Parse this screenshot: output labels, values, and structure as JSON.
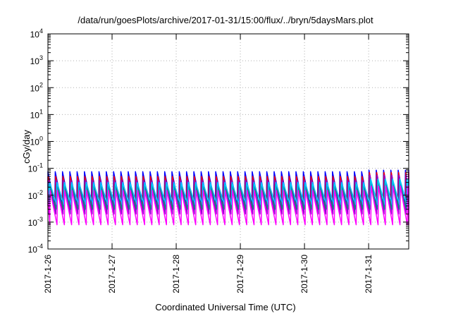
{
  "chart_data": {
    "type": "line",
    "title": "/data/run/goesPlots/archive/2017-01-31/15:00/flux/../bryn/5daysMars.plot",
    "xlabel": "Coordinated Universal Time (UTC)",
    "ylabel": "cGy/day",
    "yscale": "log",
    "ylim": [
      0.0001,
      10000
    ],
    "y_ticks": [
      {
        "value": 0.0001,
        "base": "10",
        "exp": "-4"
      },
      {
        "value": 0.001,
        "base": "10",
        "exp": "-3"
      },
      {
        "value": 0.01,
        "base": "10",
        "exp": "-2"
      },
      {
        "value": 0.1,
        "base": "10",
        "exp": "-1"
      },
      {
        "value": 1,
        "base": "10",
        "exp": "0"
      },
      {
        "value": 10,
        "base": "10",
        "exp": "1"
      },
      {
        "value": 100,
        "base": "10",
        "exp": "2"
      },
      {
        "value": 1000,
        "base": "10",
        "exp": "3"
      },
      {
        "value": 10000,
        "base": "10",
        "exp": "4"
      }
    ],
    "x_ticks": [
      "2017-1-26",
      "2017-1-27",
      "2017-1-28",
      "2017-1-29",
      "2017-1-30",
      "2017-1-31"
    ],
    "xlim": [
      "2017-01-26T00:00",
      "2017-01-31T15:00"
    ],
    "grid": true,
    "legend": "none",
    "sawtooth_period_hours": 2.73,
    "series": [
      {
        "color": "#0000ff",
        "peak": 0.075,
        "trough": 0.004,
        "late_peak": 0.085
      },
      {
        "color": "#ff0000",
        "peak": 0.05,
        "trough": 0.003,
        "late_peak": 0.07
      },
      {
        "color": "#9400d3",
        "peak": 0.035,
        "trough": 0.002,
        "late_peak": 0.055
      },
      {
        "color": "#008b8b",
        "peak": 0.025,
        "trough": 0.003,
        "late_peak": 0.035
      },
      {
        "color": "#00c8ff",
        "peak": 0.03,
        "trough": 0.0045,
        "late_peak": 0.04
      },
      {
        "color": "#ff00ff",
        "peak": 0.015,
        "trough": 0.0008,
        "late_peak": 0.022
      }
    ]
  }
}
